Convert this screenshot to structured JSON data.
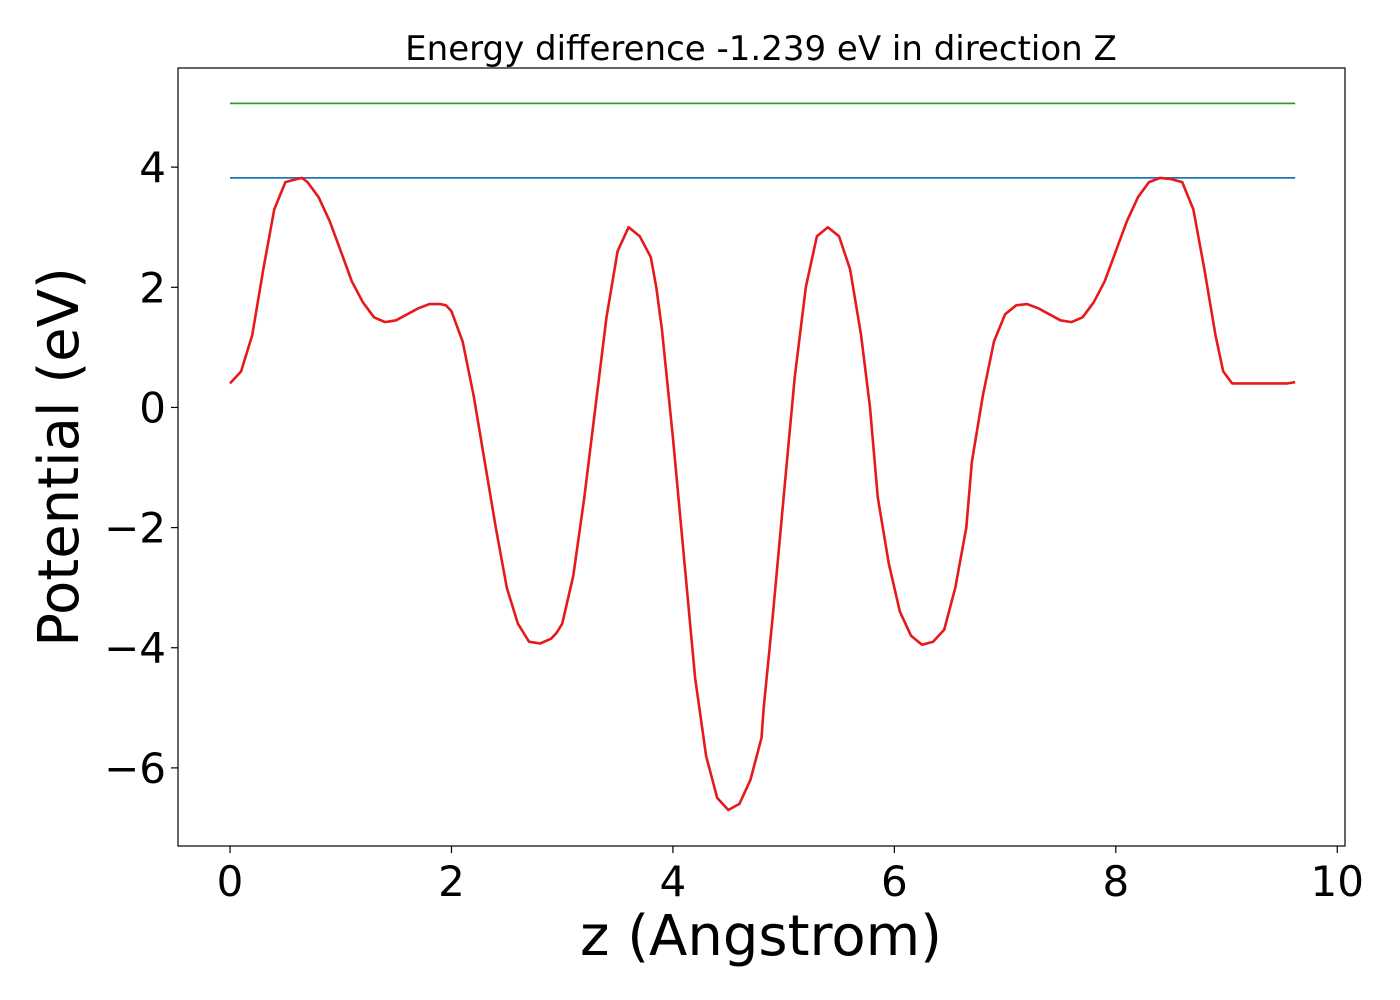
{
  "chart_data": {
    "type": "line",
    "title": "Energy difference -1.239 eV in direction Z",
    "xlabel": "z (Angstrom)",
    "ylabel": "Potential (eV)",
    "xlim": [
      -0.47,
      10.07
    ],
    "ylim": [
      -7.3,
      5.65
    ],
    "x_ticks": [
      0,
      2,
      4,
      6,
      8,
      10
    ],
    "x_tick_labels": [
      "0",
      "2",
      "4",
      "6",
      "8",
      "10"
    ],
    "y_ticks": [
      4,
      2,
      0,
      -2,
      -4,
      -6
    ],
    "y_tick_labels": [
      "4",
      "2",
      "0",
      "−2",
      "−4",
      "−6"
    ],
    "grid": false,
    "series": [
      {
        "color": "#2ca02c",
        "x": [
          0,
          9.62
        ],
        "y": [
          5.06,
          5.06
        ]
      },
      {
        "color": "#1f77b4",
        "x": [
          0,
          9.62
        ],
        "y": [
          3.82,
          3.82
        ]
      },
      {
        "color": "#e41a1c",
        "x": [
          0,
          0.1,
          0.2,
          0.3,
          0.4,
          0.5,
          0.6,
          0.65,
          0.7,
          0.8,
          0.9,
          1.0,
          1.1,
          1.2,
          1.3,
          1.4,
          1.5,
          1.6,
          1.7,
          1.8,
          1.9,
          1.95,
          2.0,
          2.1,
          2.2,
          2.3,
          2.4,
          2.5,
          2.6,
          2.7,
          2.8,
          2.9,
          2.95,
          3.0,
          3.1,
          3.2,
          3.3,
          3.4,
          3.5,
          3.6,
          3.7,
          3.8,
          3.85,
          3.9,
          4.0,
          4.1,
          4.2,
          4.3,
          4.4,
          4.5,
          4.6,
          4.7,
          4.8,
          4.82,
          4.9,
          5.0,
          5.1,
          5.2,
          5.3,
          5.4,
          5.5,
          5.6,
          5.7,
          5.78,
          5.85,
          5.95,
          6.05,
          6.15,
          6.25,
          6.35,
          6.45,
          6.55,
          6.65,
          6.7,
          6.8,
          6.9,
          7.0,
          7.1,
          7.2,
          7.3,
          7.4,
          7.5,
          7.6,
          7.7,
          7.8,
          7.9,
          8.0,
          8.1,
          8.2,
          8.3,
          8.4,
          8.5,
          8.6,
          8.7,
          8.8,
          8.9,
          8.97,
          9.05,
          9.15,
          9.25,
          9.35,
          9.45,
          9.55,
          9.62
        ],
        "y": [
          0.4,
          0.6,
          1.2,
          2.3,
          3.3,
          3.75,
          3.8,
          3.82,
          3.75,
          3.5,
          3.1,
          2.6,
          2.1,
          1.75,
          1.5,
          1.42,
          1.45,
          1.55,
          1.65,
          1.72,
          1.72,
          1.7,
          1.6,
          1.1,
          0.2,
          -0.9,
          -2.0,
          -3.0,
          -3.6,
          -3.9,
          -3.93,
          -3.85,
          -3.75,
          -3.6,
          -2.8,
          -1.5,
          0.0,
          1.5,
          2.6,
          3.0,
          2.85,
          2.5,
          2.0,
          1.3,
          -0.5,
          -2.5,
          -4.5,
          -5.8,
          -6.5,
          -6.7,
          -6.6,
          -6.2,
          -5.5,
          -5.0,
          -3.5,
          -1.5,
          0.5,
          2.0,
          2.85,
          3.0,
          2.85,
          2.3,
          1.2,
          0.0,
          -1.5,
          -2.6,
          -3.4,
          -3.8,
          -3.95,
          -3.9,
          -3.7,
          -3.0,
          -2.0,
          -0.9,
          0.2,
          1.1,
          1.55,
          1.7,
          1.72,
          1.65,
          1.55,
          1.45,
          1.42,
          1.5,
          1.75,
          2.1,
          2.6,
          3.1,
          3.5,
          3.75,
          3.82,
          3.8,
          3.75,
          3.3,
          2.3,
          1.2,
          0.6,
          0.4,
          0.4,
          0.4,
          0.4,
          0.4,
          0.4,
          0.42
        ]
      }
    ]
  }
}
